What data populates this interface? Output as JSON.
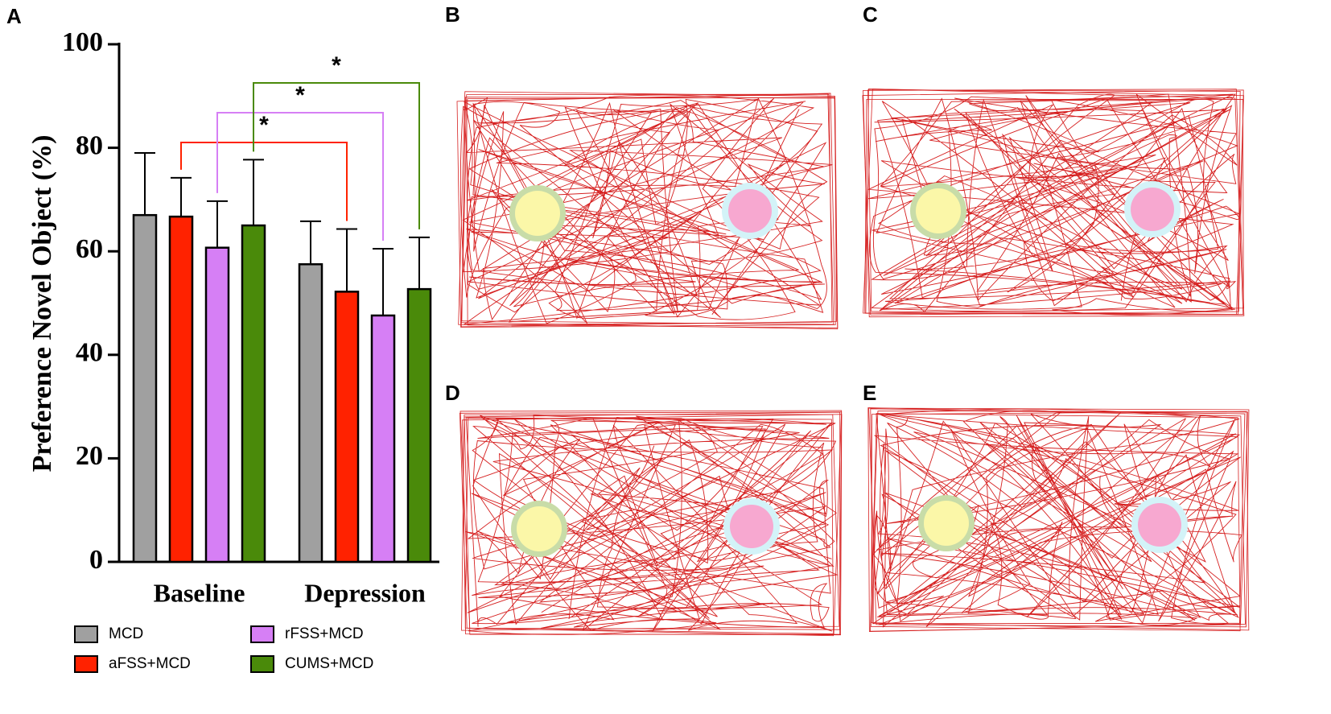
{
  "chart_data": {
    "type": "bar",
    "panel_label": "A",
    "y_label": "Preference Novel Object (%)",
    "categories": [
      "Baseline",
      "Depression"
    ],
    "series": [
      {
        "name": "MCD",
        "color": "#a0a0a0",
        "values": [
          67,
          57.5
        ],
        "errors": [
          12,
          8.3
        ]
      },
      {
        "name": "aFSS+MCD",
        "color": "#ff2200",
        "values": [
          66.7,
          52.2
        ],
        "errors": [
          7.5,
          12.1
        ]
      },
      {
        "name": "rFSS+MCD",
        "color": "#d67ff5",
        "values": [
          60.7,
          47.6
        ],
        "errors": [
          9,
          12.9
        ]
      },
      {
        "name": "CUMS+MCD",
        "color": "#4a8a0a",
        "values": [
          65,
          52.7
        ],
        "errors": [
          12.7,
          10
        ]
      }
    ],
    "ylim": [
      0,
      100
    ],
    "yticks": [
      0,
      20,
      40,
      60,
      80,
      100
    ],
    "significance": [
      {
        "label": "*",
        "series": 1
      },
      {
        "label": "*",
        "series": 2
      },
      {
        "label": "*",
        "series": 3
      }
    ]
  },
  "panels": [
    {
      "label": "B"
    },
    {
      "label": "C"
    },
    {
      "label": "D"
    },
    {
      "label": "E"
    }
  ]
}
